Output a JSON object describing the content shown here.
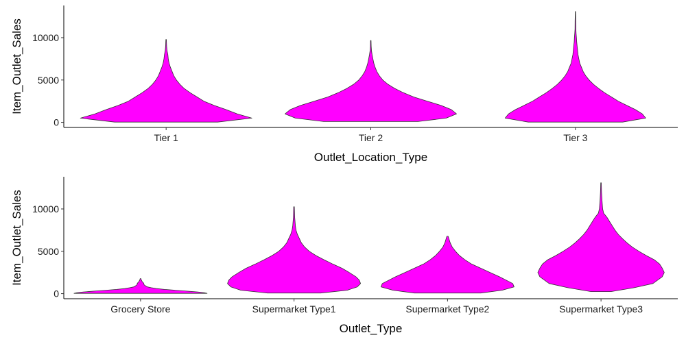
{
  "chart_data": [
    {
      "type": "violin",
      "xlabel": "Outlet_Location_Type",
      "ylabel": "Item_Outlet_Sales",
      "categories": [
        "Tier 1",
        "Tier 2",
        "Tier 3"
      ],
      "ylim": [
        -600,
        13800
      ],
      "yticks": [
        0,
        5000,
        10000
      ],
      "ytick_labels": [
        "0",
        "5000",
        "10000"
      ],
      "grid": false,
      "fill_color": "#ff00ff",
      "outline_color": "#333333",
      "violins": [
        {
          "category": "Tier 1",
          "min": 33,
          "max": 9779,
          "profile": [
            [
              33,
              0.6
            ],
            [
              500,
              1.0
            ],
            [
              1000,
              0.83
            ],
            [
              1500,
              0.7
            ],
            [
              2000,
              0.56
            ],
            [
              2500,
              0.44
            ],
            [
              3000,
              0.36
            ],
            [
              3500,
              0.28
            ],
            [
              4000,
              0.21
            ],
            [
              4500,
              0.16
            ],
            [
              5000,
              0.12
            ],
            [
              5500,
              0.09
            ],
            [
              6000,
              0.07
            ],
            [
              6500,
              0.05
            ],
            [
              7000,
              0.035
            ],
            [
              7500,
              0.025
            ],
            [
              8000,
              0.02
            ],
            [
              8500,
              0.01
            ],
            [
              9000,
              0.006
            ],
            [
              9779,
              0.003
            ]
          ]
        },
        {
          "category": "Tier 2",
          "min": 99,
          "max": 9665,
          "profile": [
            [
              99,
              0.55
            ],
            [
              500,
              0.88
            ],
            [
              1000,
              1.0
            ],
            [
              1500,
              0.94
            ],
            [
              2000,
              0.82
            ],
            [
              2500,
              0.66
            ],
            [
              3000,
              0.5
            ],
            [
              3500,
              0.38
            ],
            [
              4000,
              0.28
            ],
            [
              4500,
              0.2
            ],
            [
              5000,
              0.14
            ],
            [
              5500,
              0.1
            ],
            [
              6000,
              0.07
            ],
            [
              6500,
              0.05
            ],
            [
              7000,
              0.035
            ],
            [
              7500,
              0.025
            ],
            [
              8000,
              0.015
            ],
            [
              8500,
              0.008
            ],
            [
              9000,
              0.005
            ],
            [
              9665,
              0.003
            ]
          ]
        },
        {
          "category": "Tier 3",
          "min": 33,
          "max": 13087,
          "profile": [
            [
              33,
              0.55
            ],
            [
              500,
              0.82
            ],
            [
              1000,
              0.78
            ],
            [
              1500,
              0.7
            ],
            [
              2000,
              0.6
            ],
            [
              2500,
              0.5
            ],
            [
              3000,
              0.42
            ],
            [
              3500,
              0.34
            ],
            [
              4000,
              0.27
            ],
            [
              4500,
              0.21
            ],
            [
              5000,
              0.16
            ],
            [
              5500,
              0.12
            ],
            [
              6000,
              0.09
            ],
            [
              6500,
              0.07
            ],
            [
              7000,
              0.05
            ],
            [
              7500,
              0.04
            ],
            [
              8000,
              0.03
            ],
            [
              8500,
              0.025
            ],
            [
              9000,
              0.02
            ],
            [
              9500,
              0.015
            ],
            [
              10000,
              0.012
            ],
            [
              10500,
              0.008
            ],
            [
              11000,
              0.005
            ],
            [
              12000,
              0.004
            ],
            [
              13087,
              0.002
            ]
          ]
        }
      ]
    },
    {
      "type": "violin",
      "xlabel": "Outlet_Type",
      "ylabel": "Item_Outlet_Sales",
      "categories": [
        "Grocery Store",
        "Supermarket Type1",
        "Supermarket Type2",
        "Supermarket Type3"
      ],
      "ylim": [
        -600,
        13800
      ],
      "yticks": [
        0,
        5000,
        10000
      ],
      "ytick_labels": [
        "0",
        "5000",
        "10000"
      ],
      "grid": false,
      "fill_color": "#ff00ff",
      "outline_color": "#333333",
      "violins": [
        {
          "category": "Grocery Store",
          "min": 33,
          "max": 1775,
          "profile": [
            [
              33,
              1.0
            ],
            [
              100,
              0.96
            ],
            [
              200,
              0.86
            ],
            [
              300,
              0.7
            ],
            [
              400,
              0.52
            ],
            [
              500,
              0.36
            ],
            [
              600,
              0.24
            ],
            [
              700,
              0.16
            ],
            [
              800,
              0.1
            ],
            [
              900,
              0.08
            ],
            [
              1000,
              0.06
            ],
            [
              1100,
              0.05
            ],
            [
              1200,
              0.05
            ],
            [
              1300,
              0.04
            ],
            [
              1400,
              0.025
            ],
            [
              1500,
              0.02
            ],
            [
              1600,
              0.012
            ],
            [
              1775,
              0.006
            ]
          ]
        },
        {
          "category": "Supermarket Type1",
          "min": 73,
          "max": 10257,
          "profile": [
            [
              73,
              0.4
            ],
            [
              400,
              0.8
            ],
            [
              800,
              0.95
            ],
            [
              1200,
              1.0
            ],
            [
              1600,
              0.98
            ],
            [
              2000,
              0.93
            ],
            [
              2500,
              0.83
            ],
            [
              3000,
              0.72
            ],
            [
              3500,
              0.58
            ],
            [
              4000,
              0.45
            ],
            [
              4500,
              0.33
            ],
            [
              5000,
              0.23
            ],
            [
              5500,
              0.16
            ],
            [
              6000,
              0.11
            ],
            [
              6500,
              0.08
            ],
            [
              7000,
              0.05
            ],
            [
              7500,
              0.03
            ],
            [
              8000,
              0.02
            ],
            [
              9000,
              0.01
            ],
            [
              10257,
              0.005
            ]
          ]
        },
        {
          "category": "Supermarket Type2",
          "min": 69,
          "max": 6768,
          "profile": [
            [
              69,
              0.5
            ],
            [
              400,
              0.82
            ],
            [
              800,
              1.0
            ],
            [
              1200,
              0.98
            ],
            [
              1600,
              0.88
            ],
            [
              2000,
              0.78
            ],
            [
              2500,
              0.64
            ],
            [
              3000,
              0.5
            ],
            [
              3500,
              0.36
            ],
            [
              4000,
              0.26
            ],
            [
              4500,
              0.18
            ],
            [
              5000,
              0.12
            ],
            [
              5500,
              0.07
            ],
            [
              6000,
              0.04
            ],
            [
              6500,
              0.02
            ],
            [
              6768,
              0.01
            ]
          ]
        },
        {
          "category": "Supermarket Type3",
          "min": 241,
          "max": 13087,
          "profile": [
            [
              241,
              0.15
            ],
            [
              700,
              0.5
            ],
            [
              1200,
              0.78
            ],
            [
              2000,
              0.92
            ],
            [
              2500,
              0.95
            ],
            [
              3000,
              0.92
            ],
            [
              3500,
              0.88
            ],
            [
              4000,
              0.8
            ],
            [
              4500,
              0.68
            ],
            [
              5000,
              0.57
            ],
            [
              5500,
              0.47
            ],
            [
              6000,
              0.39
            ],
            [
              6500,
              0.32
            ],
            [
              7000,
              0.26
            ],
            [
              7500,
              0.21
            ],
            [
              8000,
              0.17
            ],
            [
              8500,
              0.13
            ],
            [
              9000,
              0.09
            ],
            [
              9500,
              0.04
            ],
            [
              10000,
              0.025
            ],
            [
              11000,
              0.015
            ],
            [
              12000,
              0.008
            ],
            [
              13087,
              0.004
            ]
          ]
        }
      ]
    }
  ]
}
